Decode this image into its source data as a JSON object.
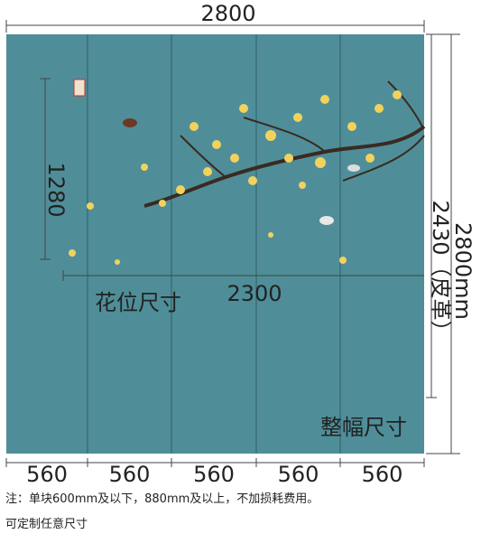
{
  "top_width": "2800",
  "flower_height": "1280",
  "flower_width": "2300",
  "flower_label": "花位尺寸",
  "total_height": "2800mm",
  "leather_height": "2430（皮革）",
  "total_label": "整幅尺寸",
  "panel_widths": [
    "560",
    "560",
    "560",
    "560",
    "560"
  ],
  "notes": [
    "注：单块600mm及以下，880mm及以上，不加损耗费用。",
    "可定制任意尺寸"
  ]
}
